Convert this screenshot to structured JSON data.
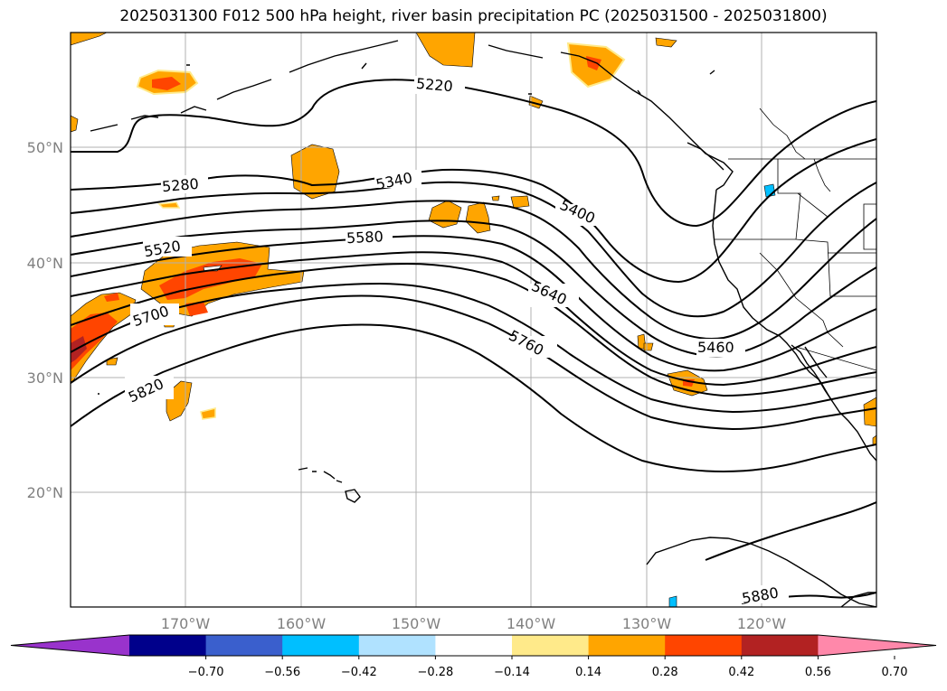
{
  "title": "2025031300 F012 500 hPa height, river basin precipitation PC (2025031500 - 2025031800)",
  "map": {
    "lat_labels": [
      "50°N",
      "40°N",
      "30°N",
      "20°N"
    ],
    "lon_labels": [
      "170°W",
      "160°W",
      "150°W",
      "140°W",
      "130°W",
      "120°W"
    ],
    "contour_labels": [
      "5220",
      "5280",
      "5340",
      "5400",
      "5460",
      "5520",
      "5580",
      "5640",
      "5700",
      "5760",
      "5820",
      "5880"
    ]
  },
  "colorbar": {
    "colors": [
      "#9933cc",
      "#00008b",
      "#3a5fcd",
      "#00bfff",
      "#b0e2ff",
      "#ffffff",
      "#ffea8a",
      "#ffa500",
      "#ff4500",
      "#b22222",
      "#ff88aa"
    ],
    "tick_labels": [
      "−0.70",
      "−0.56",
      "−0.42",
      "−0.28",
      "−0.14",
      "0.14",
      "0.28",
      "0.42",
      "0.56",
      "0.70"
    ]
  }
}
